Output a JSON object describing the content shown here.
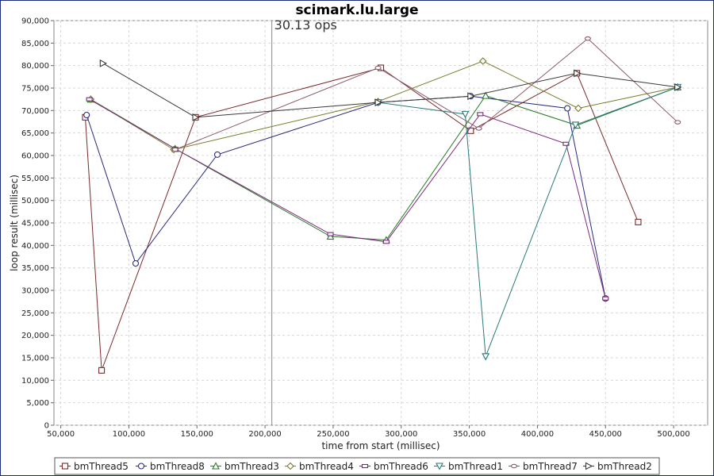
{
  "chart_data": {
    "type": "line",
    "title": "scimark.lu.large",
    "xlabel": "time from start (millisec)",
    "ylabel": "loop result (millisec)",
    "xlim": [
      45000,
      525000
    ],
    "ylim": [
      0,
      90000
    ],
    "xticks": [
      50000,
      100000,
      150000,
      200000,
      250000,
      300000,
      350000,
      400000,
      450000,
      500000
    ],
    "xtick_labels": [
      "50,000",
      "100,000",
      "150,000",
      "200,000",
      "250,000",
      "300,000",
      "350,000",
      "400,000",
      "450,000",
      "500,000"
    ],
    "yticks": [
      0,
      5000,
      10000,
      15000,
      20000,
      25000,
      30000,
      35000,
      40000,
      45000,
      50000,
      55000,
      60000,
      65000,
      70000,
      75000,
      80000,
      85000,
      90000
    ],
    "ytick_labels": [
      "0",
      "5,000",
      "10,000",
      "15,000",
      "20,000",
      "25,000",
      "30,000",
      "35,000",
      "40,000",
      "45,000",
      "50,000",
      "55,000",
      "60,000",
      "65,000",
      "70,000",
      "75,000",
      "80,000",
      "85,000",
      "90,000"
    ],
    "grid": true,
    "legend_position": "bottom",
    "annotation": {
      "x": 205000,
      "label": "30.13 ops"
    },
    "series": [
      {
        "name": "bmThread5",
        "marker": "square",
        "color": "#7a2b2b",
        "points": [
          [
            68000,
            68500
          ],
          [
            80000,
            12200
          ],
          [
            149000,
            68500
          ],
          [
            285000,
            79500
          ],
          [
            351000,
            65500
          ],
          [
            429000,
            78300
          ],
          [
            474000,
            45200
          ]
        ]
      },
      {
        "name": "bmThread8",
        "marker": "circle",
        "color": "#2a2a7a",
        "points": [
          [
            69000,
            69000
          ],
          [
            105000,
            36000
          ],
          [
            165000,
            60200
          ],
          [
            283000,
            71800
          ],
          [
            351000,
            73200
          ],
          [
            422000,
            70500
          ],
          [
            450000,
            28200
          ]
        ]
      },
      {
        "name": "bmThread3",
        "marker": "triangle-up",
        "color": "#2a7a2a",
        "points": [
          [
            72000,
            72500
          ],
          [
            134000,
            61500
          ],
          [
            248000,
            42000
          ],
          [
            289000,
            41200
          ],
          [
            362000,
            73300
          ],
          [
            429000,
            66700
          ],
          [
            503000,
            75200
          ]
        ]
      },
      {
        "name": "bmThread4",
        "marker": "diamond",
        "color": "#7a7a2a",
        "points": [
          [
            72000,
            72500
          ],
          [
            133000,
            61300
          ],
          [
            283000,
            72000
          ],
          [
            360000,
            81000
          ],
          [
            430000,
            70500
          ],
          [
            503000,
            75200
          ]
        ]
      },
      {
        "name": "bmThread6",
        "marker": "rect",
        "color": "#7a2a7a",
        "points": [
          [
            71000,
            72500
          ],
          [
            134000,
            61500
          ],
          [
            248000,
            42500
          ],
          [
            289000,
            40800
          ],
          [
            358000,
            69200
          ],
          [
            421000,
            62600
          ],
          [
            450000,
            28200
          ]
        ]
      },
      {
        "name": "bmThread1",
        "marker": "triangle-down",
        "color": "#2a7a7a",
        "points": [
          [
            283000,
            71800
          ],
          [
            347000,
            69200
          ],
          [
            362000,
            15300
          ],
          [
            428000,
            66800
          ],
          [
            503000,
            75200
          ]
        ]
      },
      {
        "name": "bmThread7",
        "marker": "ellipse",
        "color": "#8a5a6a",
        "points": [
          [
            134000,
            61300
          ],
          [
            283000,
            79500
          ],
          [
            357000,
            66000
          ],
          [
            437000,
            86000
          ],
          [
            503000,
            67400
          ]
        ]
      },
      {
        "name": "bmThread2",
        "marker": "triangle-right",
        "color": "#3a3a3a",
        "points": [
          [
            81000,
            80500
          ],
          [
            149000,
            68500
          ],
          [
            283000,
            71800
          ],
          [
            351000,
            73200
          ],
          [
            429000,
            78300
          ],
          [
            503000,
            75200
          ]
        ]
      }
    ]
  }
}
